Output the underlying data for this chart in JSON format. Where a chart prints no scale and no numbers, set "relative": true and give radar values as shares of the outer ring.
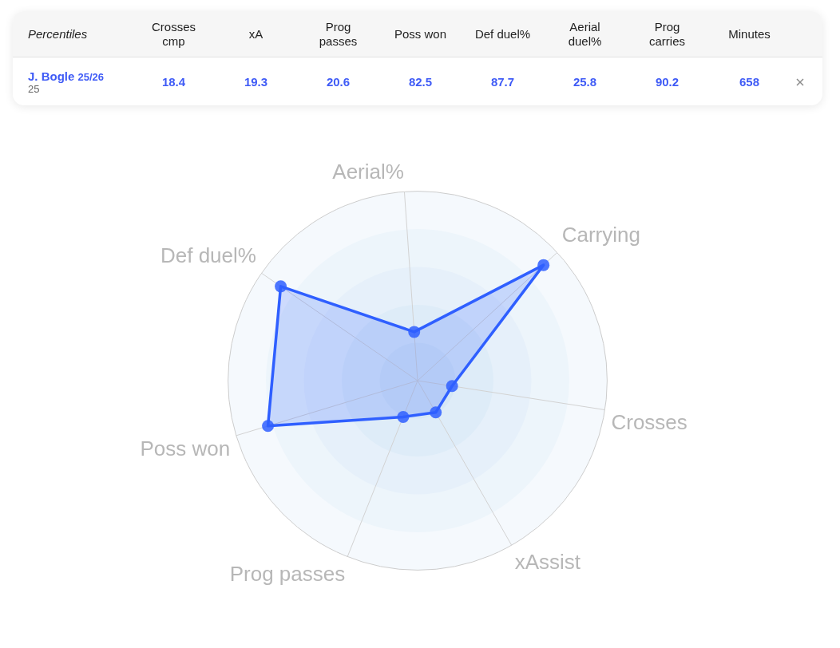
{
  "chart_data": [
    {
      "type": "other",
      "title": "Percentiles",
      "categories": [
        "Crosses cmp",
        "xA",
        "Prog passes",
        "Poss won",
        "Def duel%",
        "Aerial duel%",
        "Prog carries",
        "Minutes"
      ],
      "series": [
        {
          "name": "J. Bogle",
          "values": [
            18.4,
            19.3,
            20.6,
            82.5,
            87.7,
            25.8,
            90.2,
            658
          ]
        }
      ],
      "data_labels": true,
      "annotations": [
        "25/26",
        "25"
      ]
    },
    {
      "type": "radar",
      "categories": [
        "Aerial%",
        "Carrying",
        "Crosses",
        "xAssist",
        "Prog passes",
        "Poss won",
        "Def duel%"
      ],
      "series": [
        {
          "color": "#2f5fff",
          "values": [
            0.258,
            0.902,
            0.184,
            0.193,
            0.206,
            0.825,
            0.877
          ]
        }
      ],
      "relative": true,
      "grid": true,
      "marker": "circle"
    }
  ]
}
